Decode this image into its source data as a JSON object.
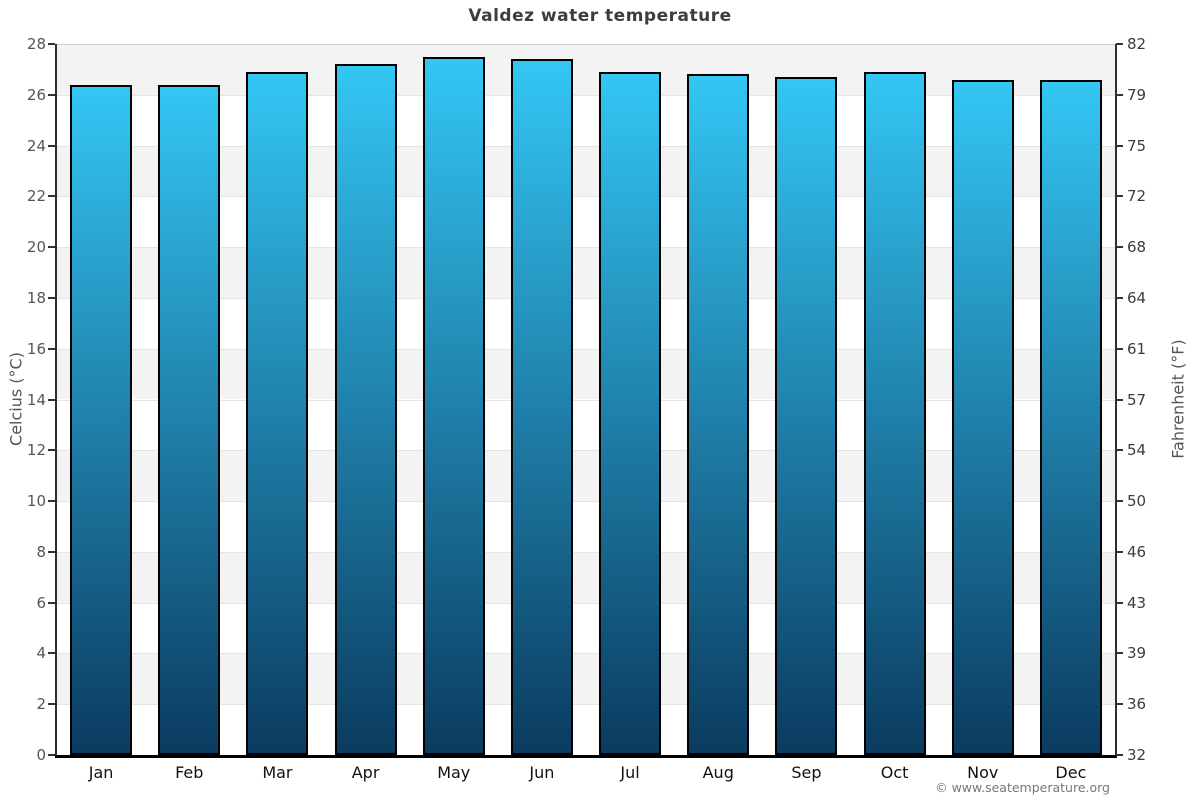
{
  "title": "Valdez water temperature",
  "footer": {
    "copyright": "© www.seatemperature.org"
  },
  "colors": {
    "bar_top": "#34c6f4",
    "bar_bottom": "#0b3b60",
    "bar_border": "#000000",
    "band_gray": "#f3f3f3",
    "band_white": "#ffffff",
    "gridline": "#e4e4e4",
    "gridline_top": "#d0d0d0",
    "axis_line": "#2e2e2e",
    "bottom_axis": "#000000",
    "title_text": "#3d3d3d",
    "axis_text_left": "#555555",
    "axis_text_right": "#3c3c3c",
    "month_text": "#111111",
    "copyright_text": "#777777"
  },
  "chart_data": {
    "type": "bar",
    "title": "Valdez water temperature",
    "categories": [
      "Jan",
      "Feb",
      "Mar",
      "Apr",
      "May",
      "Jun",
      "Jul",
      "Aug",
      "Sep",
      "Oct",
      "Nov",
      "Dec"
    ],
    "values": [
      26.4,
      26.4,
      26.9,
      27.2,
      27.5,
      27.4,
      26.9,
      26.8,
      26.7,
      26.9,
      26.6,
      26.6
    ],
    "ylabel_left": "Celcius (°C)",
    "ylabel_right": "Fahrenheit (°F)",
    "ylim": [
      0,
      28
    ],
    "ytick_step": 2,
    "yticks_left": [
      "28",
      "26",
      "24",
      "22",
      "20",
      "18",
      "16",
      "14",
      "12",
      "10",
      "8",
      "6",
      "4",
      "2",
      "0"
    ],
    "yticks_right": [
      "82",
      "79",
      "75",
      "72",
      "68",
      "64",
      "61",
      "57",
      "54",
      "50",
      "46",
      "43",
      "39",
      "36",
      "32"
    ],
    "xlabel": "",
    "grid": "alternating horizontal bands every 2°C, gray starting at 28-26",
    "legend": "none"
  }
}
